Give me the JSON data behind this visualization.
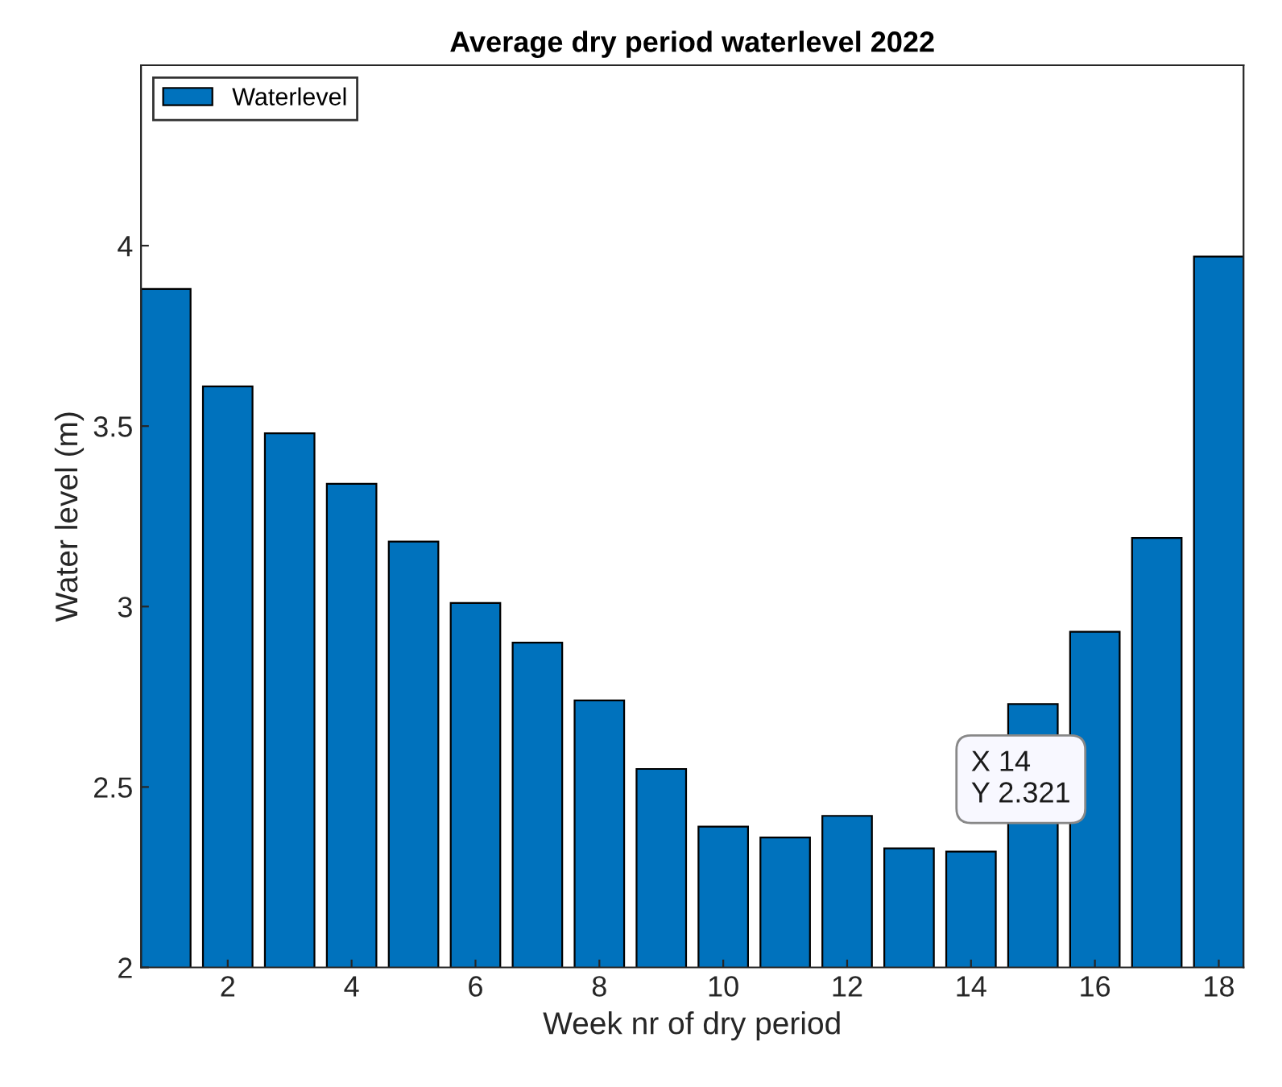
{
  "chart_data": {
    "type": "bar",
    "title": "Average dry period waterlevel 2022",
    "xlabel": "Week nr of dry period",
    "ylabel": "Water level (m)",
    "x": [
      1,
      2,
      3,
      4,
      5,
      6,
      7,
      8,
      9,
      10,
      11,
      12,
      13,
      14,
      15,
      16,
      17,
      18
    ],
    "series": [
      {
        "name": "Waterlevel",
        "color": "#0072bd",
        "values": [
          3.88,
          3.61,
          3.48,
          3.34,
          3.18,
          3.01,
          2.9,
          2.74,
          2.55,
          2.39,
          2.36,
          2.42,
          2.33,
          2.321,
          2.73,
          2.93,
          3.19,
          3.97
        ]
      }
    ],
    "xlim": [
      0.6,
      18.4
    ],
    "xticks": [
      2,
      4,
      6,
      8,
      10,
      12,
      14,
      16,
      18
    ],
    "ylim": [
      2,
      4.5
    ],
    "yticks": [
      2,
      2.5,
      3,
      3.5,
      4
    ],
    "annotations": [
      {
        "text": "X 14\nY 2.321",
        "x": 14,
        "y": 2.321
      }
    ],
    "legend": "top left",
    "grid": false
  }
}
